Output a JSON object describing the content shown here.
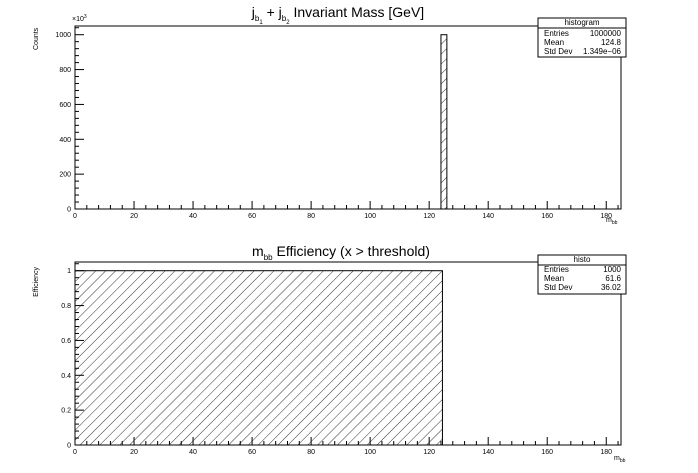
{
  "chart_data": [
    {
      "type": "bar",
      "title": {
        "main": "j",
        "sub1": "b",
        "subsub1": "1",
        "plus": " + j",
        "sub2": "b",
        "subsub2": "2",
        "rest": " Invariant Mass [GeV]"
      },
      "ylabel": "Counts",
      "xlabel": {
        "main": "m",
        "sub": "bb"
      },
      "y_multiplier": "×10",
      "y_multiplier_exp": "3",
      "xlim": [
        0,
        185
      ],
      "ylim": [
        0,
        1050
      ],
      "x_ticks": [
        "0",
        "20",
        "40",
        "60",
        "80",
        "100",
        "120",
        "140",
        "160",
        "180"
      ],
      "y_ticks": [
        "0",
        "200",
        "400",
        "600",
        "800",
        "1000"
      ],
      "bins": [
        {
          "x0": 124,
          "x1": 126,
          "value": 1000
        }
      ],
      "fill": "hatched",
      "stats": {
        "name": "histogram",
        "rows": [
          {
            "label": "Entries",
            "value": "1000000"
          },
          {
            "label": "Mean",
            "value": "124.8"
          },
          {
            "label": "Std Dev",
            "value": "1.349e−06"
          }
        ]
      }
    },
    {
      "type": "bar",
      "title": {
        "main": "m",
        "sub": "bb",
        "rest": " Efficiency (x > threshold)"
      },
      "ylabel": "Efficiency",
      "xlabel": {
        "main": "m",
        "sub": "bb"
      },
      "xlim": [
        0,
        185
      ],
      "ylim": [
        0,
        1.05
      ],
      "x_ticks": [
        "0",
        "20",
        "40",
        "60",
        "80",
        "100",
        "120",
        "140",
        "160",
        "180"
      ],
      "y_ticks": [
        "0",
        "0.2",
        "0.4",
        "0.6",
        "0.8",
        "1"
      ],
      "bins": [
        {
          "x0": 0,
          "x1": 124.5,
          "value": 1
        }
      ],
      "fill": "hatched",
      "stats": {
        "name": "histo",
        "rows": [
          {
            "label": "Entries",
            "value": "1000"
          },
          {
            "label": "Mean",
            "value": "61.6"
          },
          {
            "label": "Std Dev",
            "value": "36.02"
          }
        ]
      }
    }
  ],
  "colors": {
    "line": "#000000",
    "background": "#ffffff"
  }
}
